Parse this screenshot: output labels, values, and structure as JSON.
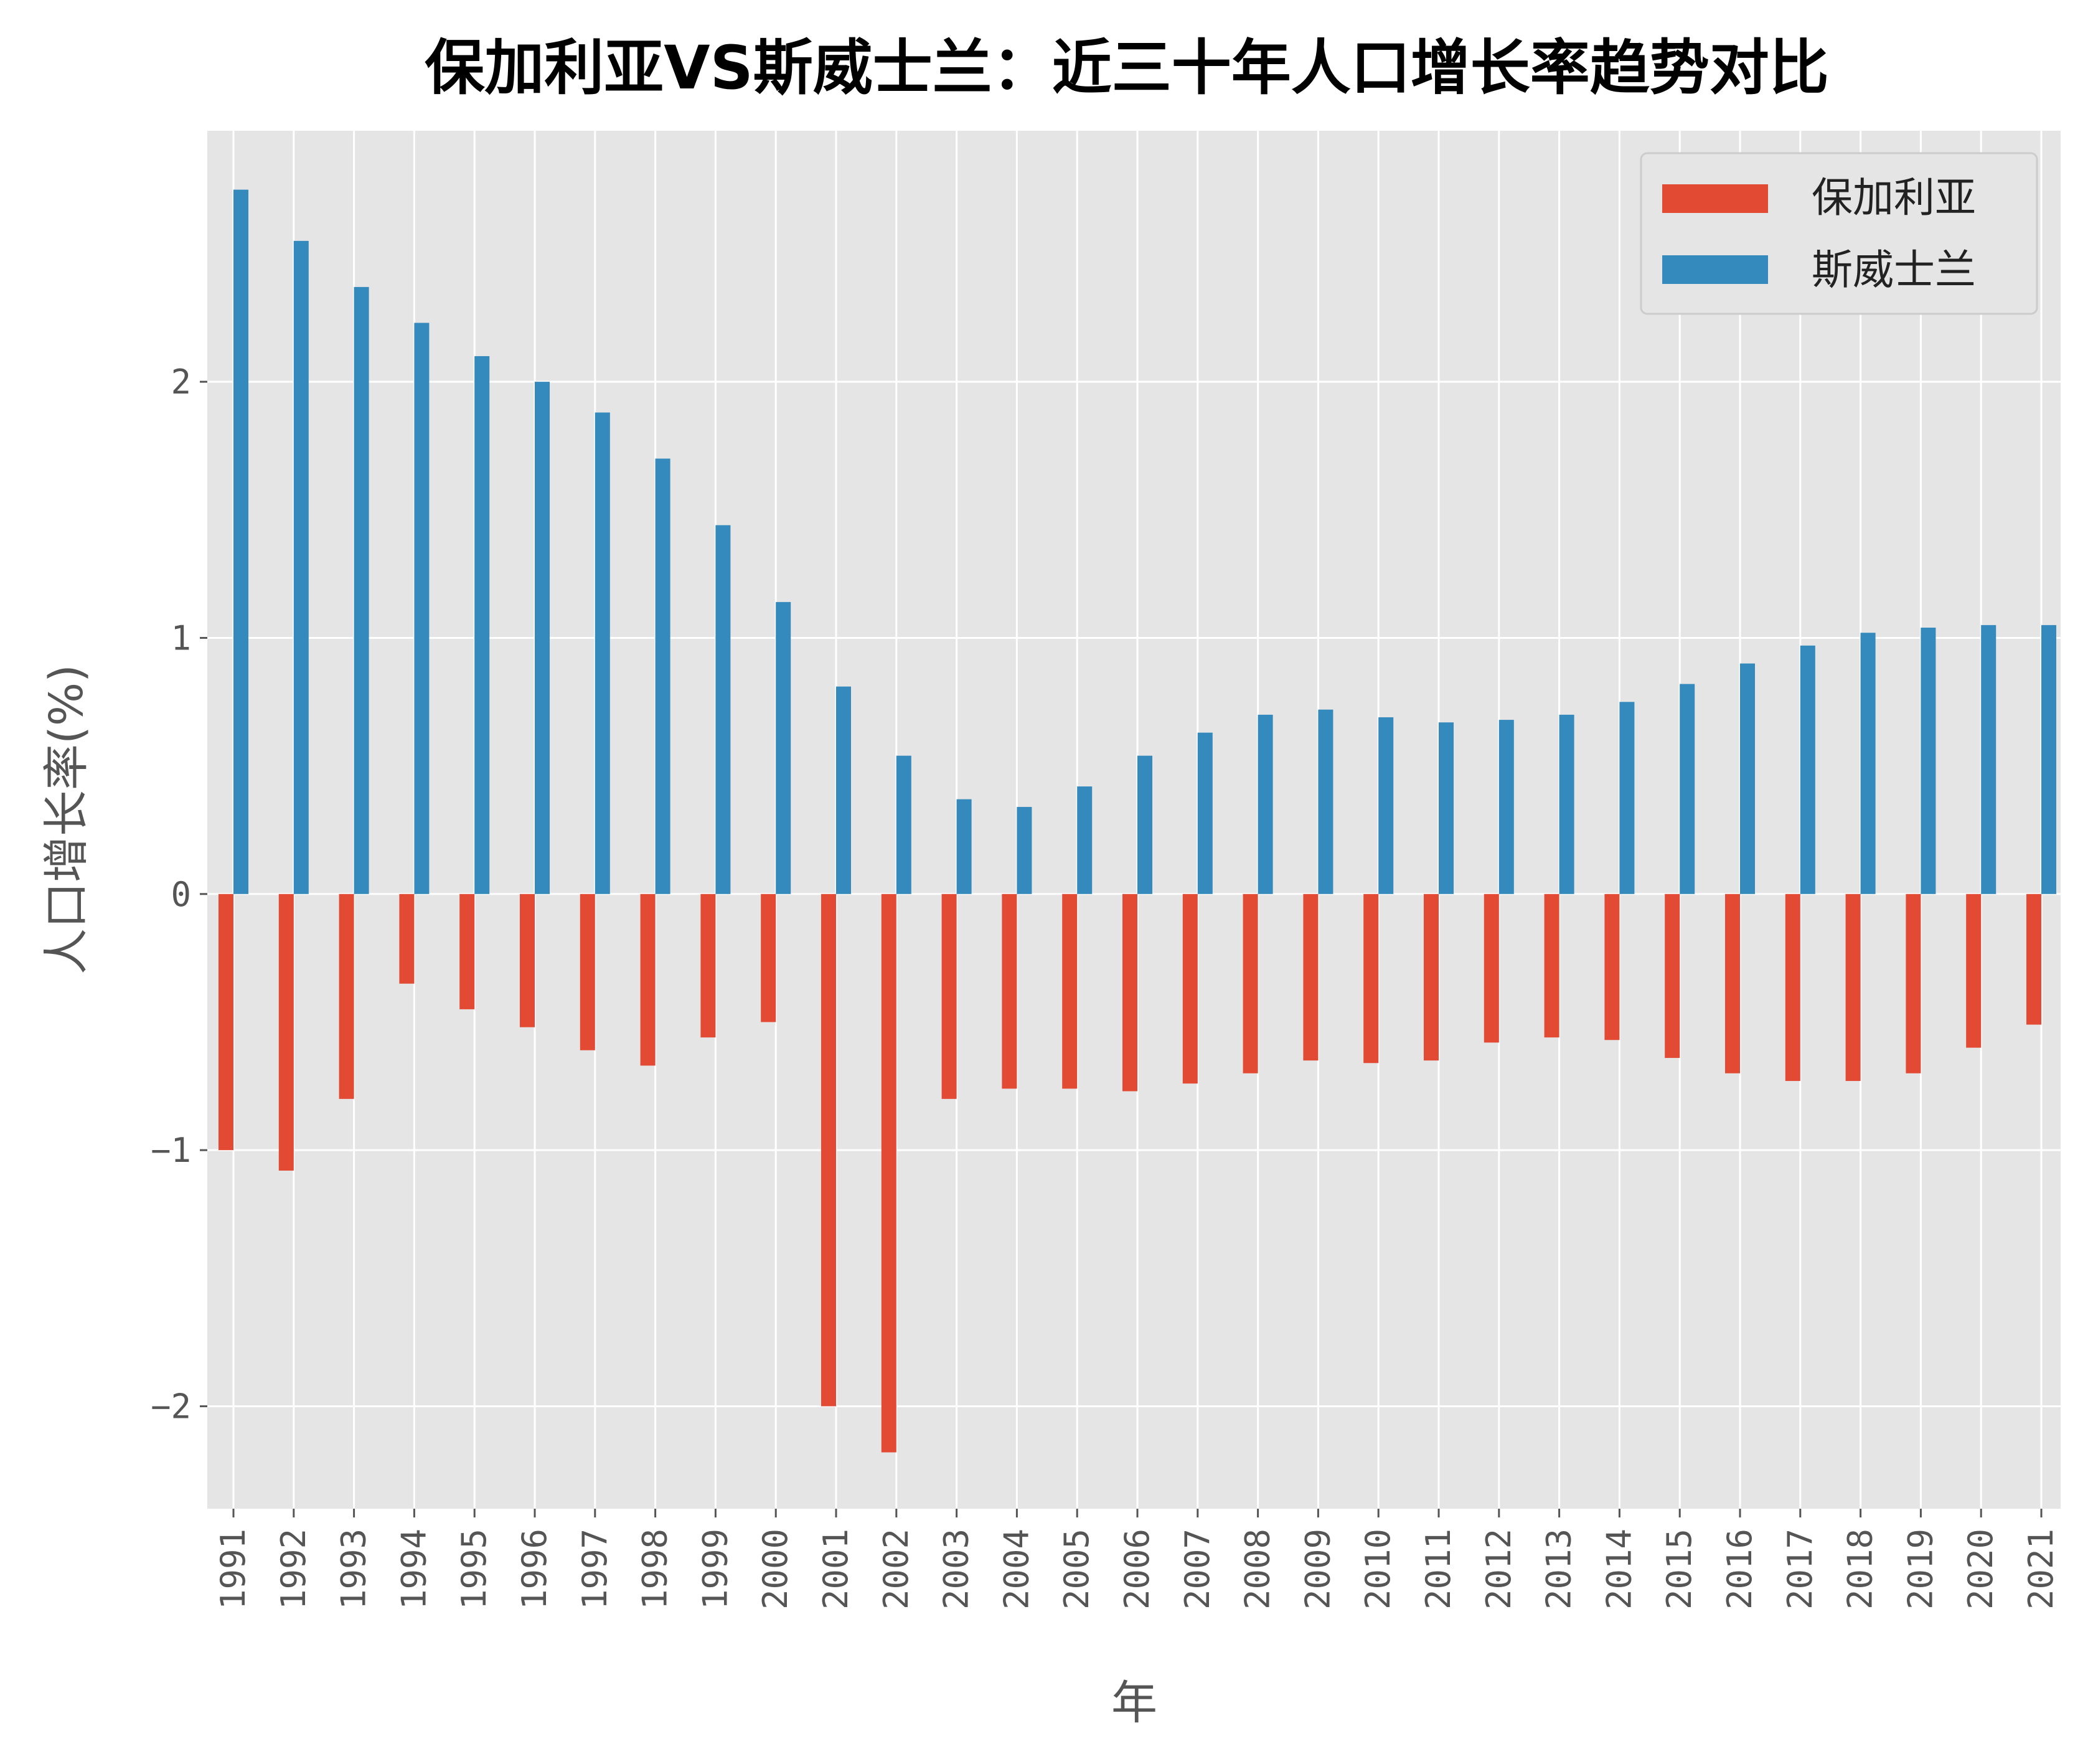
{
  "chart_data": {
    "type": "bar",
    "title": "保加利亚VS斯威士兰：近三十年人口增长率趋势对比",
    "xlabel": "年",
    "ylabel": "人口增长率(%)",
    "ylim": [
      -2.4,
      2.98
    ],
    "yticks": [
      -2,
      -1,
      0,
      1,
      2
    ],
    "ytick_labels": [
      "−2",
      "−1",
      "0",
      "1",
      "2"
    ],
    "grid": true,
    "legend_position": "top-right",
    "categories": [
      "1991",
      "1992",
      "1993",
      "1994",
      "1995",
      "1996",
      "1997",
      "1998",
      "1999",
      "2000",
      "2001",
      "2002",
      "2003",
      "2004",
      "2005",
      "2006",
      "2007",
      "2008",
      "2009",
      "2010",
      "2011",
      "2012",
      "2013",
      "2014",
      "2015",
      "2016",
      "2017",
      "2018",
      "2019",
      "2020",
      "2021"
    ],
    "series": [
      {
        "name": "保加利亚",
        "color": "#E24A33",
        "values": [
          -1.0,
          -1.08,
          -0.8,
          -0.35,
          -0.45,
          -0.52,
          -0.61,
          -0.67,
          -0.56,
          -0.5,
          -2.0,
          -2.18,
          -0.8,
          -0.76,
          -0.76,
          -0.77,
          -0.74,
          -0.7,
          -0.65,
          -0.66,
          -0.65,
          -0.58,
          -0.56,
          -0.57,
          -0.64,
          -0.7,
          -0.73,
          -0.73,
          -0.7,
          -0.6,
          -0.51
        ]
      },
      {
        "name": "斯威士兰",
        "color": "#348ABD",
        "values": [
          2.75,
          2.55,
          2.37,
          2.23,
          2.1,
          2.0,
          1.88,
          1.7,
          1.44,
          1.14,
          0.81,
          0.54,
          0.37,
          0.34,
          0.42,
          0.54,
          0.63,
          0.7,
          0.72,
          0.69,
          0.67,
          0.68,
          0.7,
          0.75,
          0.82,
          0.9,
          0.97,
          1.02,
          1.04,
          1.05,
          1.05
        ]
      }
    ]
  }
}
